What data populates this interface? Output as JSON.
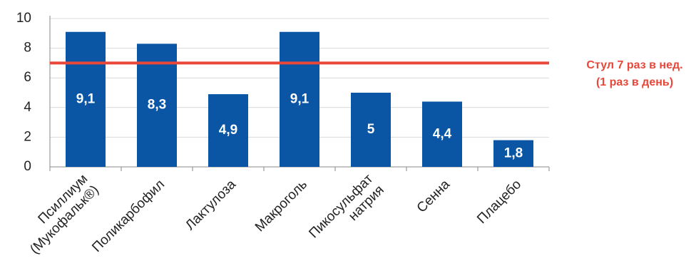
{
  "chart_data": {
    "type": "bar",
    "categories": [
      "Псиллиум\n(Мукофальк®)",
      "Поликарбофил",
      "Лактулоза",
      "Макроголь",
      "Пикосульфат\nнатрия",
      "Сенна",
      "Плацебо"
    ],
    "values": [
      9.1,
      8.3,
      4.9,
      9.1,
      5,
      4.4,
      1.8
    ],
    "value_labels": [
      "9,1",
      "8,3",
      "4,9",
      "9,1",
      "5",
      "4,4",
      "1,8"
    ],
    "color": "#0a56a5",
    "ylim": [
      0,
      10
    ],
    "yticks": [
      0,
      2,
      4,
      6,
      8,
      10
    ],
    "grid": true,
    "reference_line": {
      "value": 7,
      "color": "#e8473a"
    },
    "annotation": [
      "Стул 7 раз в нед.",
      "(1 раз в день)"
    ]
  }
}
